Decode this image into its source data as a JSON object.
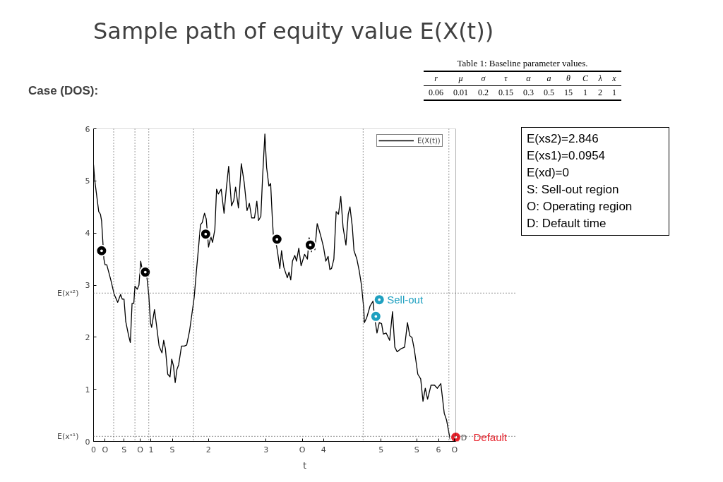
{
  "chart_data": {
    "type": "line",
    "title": "Sample path of equity value E(X(t))",
    "subtitle": "Case (DOS):",
    "xlabel": "t",
    "xlim": [
      0,
      6.3
    ],
    "ylim": [
      0,
      6
    ],
    "xticks": [
      0,
      {
        "value": 0.2,
        "label": "O"
      },
      {
        "value": 0.53,
        "label": "S"
      },
      {
        "value": 0.81,
        "label": "O"
      },
      1,
      {
        "value": 1.37,
        "label": "S"
      },
      2,
      3,
      {
        "value": 3.63,
        "label": "O"
      },
      4,
      5,
      {
        "value": 5.62,
        "label": "S"
      },
      6,
      {
        "value": 6.28,
        "label": "O"
      }
    ],
    "yticks": [
      0,
      1,
      2,
      3,
      4,
      5,
      6
    ],
    "grid": false,
    "legend": "top right",
    "ref_lines": [
      {
        "axis": "y",
        "value": 2.846,
        "label": "E(xˢ²)",
        "line_style": "dotted"
      },
      {
        "axis": "y",
        "value": 0.0954,
        "label": "E(xˢ¹)",
        "line_style": "dotted"
      },
      {
        "axis": "x",
        "value": 0.35,
        "line_style": "dotted"
      },
      {
        "axis": "x",
        "value": 0.72,
        "line_style": "dotted"
      },
      {
        "axis": "x",
        "value": 0.96,
        "line_style": "dotted"
      },
      {
        "axis": "x",
        "value": 1.74,
        "line_style": "dotted"
      },
      {
        "axis": "x",
        "value": 4.69,
        "line_style": "dotted"
      },
      {
        "axis": "x",
        "value": 6.18,
        "line_style": "dotted"
      }
    ],
    "annotations": [
      "Table 1: Baseline parameter values.",
      "r",
      "μ",
      "σ",
      "τ",
      "α",
      "a",
      "θ",
      "C",
      "λ",
      "x",
      "0.06",
      "0.01",
      "0.2",
      "0.15",
      "0.3",
      "0.5",
      "15",
      "1",
      "2",
      "1",
      "E(xs2)=2.846",
      "E(xs1)=0.0954",
      "E(xd)=0",
      "S: Sell-out region",
      "O: Operating region",
      "D: Default time",
      {
        "text": "Sell-out",
        "x": 4.97,
        "y": 2.72
      },
      {
        "text": "Default",
        "x": 6.3,
        "y": 0.08
      },
      {
        "text": "D",
        "x": 6.28,
        "y": 0
      }
    ],
    "series": [
      {
        "name": "E(X(t))",
        "type": "line",
        "color": "#000000",
        "line_style": "solid",
        "x": [
          0,
          0.02,
          0.09,
          0.12,
          0.14,
          0.18,
          0.2,
          0.23,
          0.3,
          0.36,
          0.42,
          0.47,
          0.5,
          0.53,
          0.56,
          0.61,
          0.64,
          0.67,
          0.7,
          0.72,
          0.76,
          0.79,
          0.82,
          0.85,
          0.92,
          0.96,
          0.99,
          1.01,
          1.06,
          1.1,
          1.14,
          1.19,
          1.22,
          1.25,
          1.29,
          1.33,
          1.36,
          1.39,
          1.42,
          1.45,
          1.48,
          1.53,
          1.58,
          1.62,
          1.67,
          1.75,
          1.79,
          1.83,
          1.86,
          1.89,
          1.93,
          1.96,
          2.0,
          2.04,
          2.07,
          2.11,
          2.14,
          2.17,
          2.22,
          2.27,
          2.31,
          2.35,
          2.4,
          2.44,
          2.47,
          2.52,
          2.57,
          2.62,
          2.67,
          2.71,
          2.75,
          2.8,
          2.84,
          2.87,
          2.91,
          2.94,
          2.98,
          3.01,
          3.05,
          3.08,
          3.11,
          3.13,
          3.18,
          3.2,
          3.24,
          3.27,
          3.31,
          3.37,
          3.4,
          3.43,
          3.46,
          3.5,
          3.53,
          3.57,
          3.61,
          3.67,
          3.72,
          3.75,
          3.79,
          3.82,
          3.85,
          3.89,
          3.92,
          3.96,
          4.0,
          4.04,
          4.08,
          4.11,
          4.14,
          4.18,
          4.22,
          4.26,
          4.3,
          4.34,
          4.39,
          4.43,
          4.46,
          4.5,
          4.53,
          4.58,
          4.62,
          4.66,
          4.7,
          4.71,
          4.75,
          4.81,
          4.86,
          4.89,
          4.93,
          4.97,
          5.01,
          5.04,
          5.09,
          5.15,
          5.2,
          5.24,
          5.28,
          5.35,
          5.41,
          5.46,
          5.5,
          5.54,
          5.58,
          5.64,
          5.69,
          5.73,
          5.77,
          5.81,
          5.87,
          5.93,
          5.98,
          6.04,
          6.1,
          6.14,
          6.2,
          6.24
        ],
        "values": [
          5.31,
          5.02,
          4.41,
          4.36,
          4.23,
          3.5,
          3.39,
          3.39,
          3.1,
          2.82,
          2.67,
          2.82,
          2.73,
          2.73,
          2.3,
          2.03,
          1.9,
          2.65,
          2.65,
          2.98,
          2.92,
          3.0,
          3.46,
          3.28,
          3.23,
          2.82,
          2.28,
          2.19,
          2.53,
          2.19,
          1.83,
          1.7,
          1.94,
          1.78,
          1.29,
          1.24,
          1.58,
          1.45,
          1.13,
          1.38,
          1.47,
          1.83,
          1.83,
          1.85,
          2.12,
          2.76,
          3.28,
          3.77,
          4.16,
          4.2,
          4.38,
          4.27,
          3.73,
          3.93,
          3.82,
          4.07,
          4.84,
          4.75,
          4.84,
          4.38,
          4.86,
          5.28,
          4.52,
          4.63,
          4.88,
          4.48,
          5.33,
          4.97,
          4.43,
          4.57,
          4.29,
          4.29,
          4.61,
          4.24,
          4.32,
          5.07,
          5.9,
          5.26,
          4.9,
          4.95,
          4.27,
          3.91,
          3.77,
          3.64,
          3.32,
          3.66,
          3.34,
          3.14,
          3.25,
          3.1,
          3.46,
          3.57,
          3.46,
          3.71,
          3.37,
          3.59,
          3.5,
          3.91,
          3.64,
          3.82,
          3.68,
          4.18,
          4.07,
          3.91,
          3.73,
          3.46,
          3.55,
          3.3,
          3.32,
          3.5,
          4.41,
          4.36,
          4.7,
          4.11,
          3.77,
          4.36,
          4.5,
          4.13,
          3.66,
          3.5,
          3.28,
          3.0,
          2.55,
          2.28,
          2.37,
          2.6,
          2.69,
          2.37,
          2.08,
          2.28,
          2.26,
          2.06,
          2.08,
          1.94,
          2.49,
          1.81,
          1.72,
          1.78,
          1.81,
          2.28,
          2.03,
          1.99,
          1.76,
          1.29,
          1.2,
          0.77,
          1.02,
          0.81,
          1.08,
          1.08,
          1.02,
          1.11,
          0.54,
          0.41,
          0.05,
          0.02
        ]
      },
      {
        "type": "scatter",
        "marker": "circle",
        "color": "#000000",
        "x": [
          0.14,
          0.9,
          1.95,
          3.19,
          3.77
        ],
        "values": [
          3.66,
          3.25,
          3.98,
          3.88,
          3.77
        ]
      },
      {
        "type": "scatter",
        "marker": "circle",
        "color": "#1fa0c0",
        "x": [
          4.97,
          4.91
        ],
        "values": [
          2.72,
          2.4
        ]
      },
      {
        "type": "scatter",
        "marker": "circle",
        "color": "#e8202a",
        "x": [
          6.3
        ],
        "values": [
          0.08
        ]
      }
    ]
  }
}
